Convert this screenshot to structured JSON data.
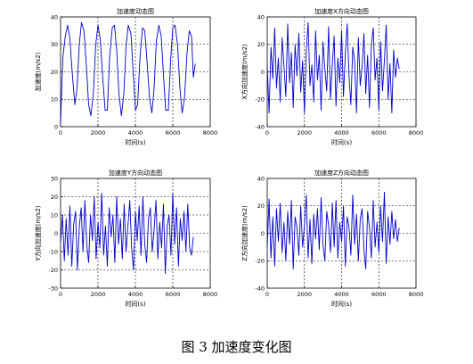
{
  "chart_data": [
    {
      "type": "line",
      "title": "加速度动态图",
      "xlabel": "时间(s)",
      "ylabel": "加速度(m/s2)",
      "xlim": [
        0,
        8000
      ],
      "ylim": [
        0,
        40
      ],
      "xticks": [
        0,
        2000,
        4000,
        6000,
        8000
      ],
      "yticks": [
        0,
        10,
        20,
        30,
        40
      ],
      "grid": true,
      "line_color": "#0000cc",
      "series": [
        {
          "x": [
            0,
            120,
            250,
            380,
            500,
            620,
            760,
            880,
            1000,
            1120,
            1250,
            1380,
            1500,
            1620,
            1760,
            1880,
            2000,
            2120,
            2250,
            2380,
            2500,
            2620,
            2760,
            2880,
            3000,
            3120,
            3250,
            3380,
            3500,
            3620,
            3760,
            3880,
            4000,
            4120,
            4250,
            4380,
            4500,
            4620,
            4760,
            4880,
            5000,
            5120,
            5250,
            5380,
            5500,
            5620,
            5760,
            5880,
            6000,
            6120,
            6250,
            6380,
            6500,
            6620,
            6760,
            6880,
            7000,
            7100,
            7200
          ],
          "y": [
            1,
            25,
            33,
            37,
            32,
            20,
            8,
            14,
            30,
            38,
            35,
            22,
            8,
            4,
            13,
            30,
            37,
            32,
            18,
            6,
            6,
            25,
            36,
            37,
            28,
            12,
            4,
            12,
            29,
            37,
            34,
            20,
            6,
            8,
            26,
            36,
            35,
            24,
            10,
            5,
            14,
            31,
            37,
            33,
            19,
            6,
            6,
            24,
            36,
            37,
            30,
            14,
            5,
            10,
            27,
            35,
            33,
            18,
            23
          ]
        }
      ]
    },
    {
      "type": "line",
      "title": "加速度X方向动态图",
      "xlabel": "时间(s)",
      "ylabel": "X方向加速度(m/s2)",
      "xlim": [
        0,
        8000
      ],
      "ylim": [
        -40,
        40
      ],
      "xticks": [
        0,
        2000,
        4000,
        6000,
        8000
      ],
      "yticks": [
        -40,
        -20,
        0,
        20,
        40
      ],
      "grid": true,
      "line_color": "#0000cc",
      "series": [
        {
          "x": [
            0,
            100,
            200,
            300,
            400,
            500,
            600,
            700,
            800,
            900,
            1000,
            1100,
            1200,
            1300,
            1400,
            1500,
            1600,
            1700,
            1800,
            1900,
            2000,
            2100,
            2200,
            2300,
            2400,
            2500,
            2600,
            2700,
            2800,
            2900,
            3000,
            3100,
            3200,
            3300,
            3400,
            3500,
            3600,
            3700,
            3800,
            3900,
            4000,
            4100,
            4200,
            4300,
            4400,
            4500,
            4600,
            4700,
            4800,
            4900,
            5000,
            5100,
            5200,
            5300,
            5400,
            5500,
            5600,
            5700,
            5800,
            5900,
            6000,
            6100,
            6200,
            6300,
            6400,
            6500,
            6600,
            6700,
            6800,
            6900,
            7000,
            7100
          ],
          "y": [
            5,
            -30,
            18,
            -5,
            32,
            -12,
            10,
            -22,
            25,
            4,
            -18,
            35,
            -8,
            14,
            -26,
            20,
            -3,
            28,
            -15,
            8,
            -30,
            15,
            36,
            -10,
            5,
            -22,
            30,
            -6,
            12,
            -28,
            22,
            2,
            -14,
            33,
            -20,
            6,
            26,
            -25,
            10,
            -8,
            30,
            -18,
            14,
            35,
            -4,
            -24,
            18,
            8,
            -30,
            25,
            -10,
            4,
            28,
            -16,
            12,
            -26,
            20,
            32,
            -6,
            10,
            -28,
            22,
            -14,
            8,
            34,
            -20,
            6,
            -30,
            16,
            -4,
            10,
            2
          ]
        }
      ]
    },
    {
      "type": "line",
      "title": "加速度Y方向动态图",
      "xlabel": "时间(s)",
      "ylabel": "Y方向加速度(m/s2)",
      "xlim": [
        0,
        8000
      ],
      "ylim": [
        -30,
        30
      ],
      "xticks": [
        0,
        2000,
        4000,
        6000,
        8000
      ],
      "yticks": [
        -30,
        -20,
        -10,
        0,
        10,
        20,
        30
      ],
      "grid": true,
      "line_color": "#0000cc",
      "series": [
        {
          "x": [
            0,
            100,
            200,
            300,
            400,
            500,
            600,
            700,
            800,
            900,
            1000,
            1100,
            1200,
            1300,
            1400,
            1500,
            1600,
            1700,
            1800,
            1900,
            2000,
            2100,
            2200,
            2300,
            2400,
            2500,
            2600,
            2700,
            2800,
            2900,
            3000,
            3100,
            3200,
            3300,
            3400,
            3500,
            3600,
            3700,
            3800,
            3900,
            4000,
            4100,
            4200,
            4300,
            4400,
            4500,
            4600,
            4700,
            4800,
            4900,
            5000,
            5100,
            5200,
            5300,
            5400,
            5500,
            5600,
            5700,
            5800,
            5900,
            6000,
            6100,
            6200,
            6300,
            6400,
            6500,
            6600,
            6700,
            6800,
            6900,
            7000,
            7100
          ],
          "y": [
            -5,
            10,
            -15,
            8,
            -12,
            15,
            -18,
            5,
            12,
            -20,
            3,
            14,
            -10,
            18,
            -6,
            -16,
            10,
            -4,
            20,
            -14,
            6,
            -8,
            22,
            -12,
            4,
            -18,
            14,
            -2,
            10,
            -16,
            20,
            -6,
            8,
            -14,
            16,
            -10,
            4,
            18,
            -8,
            -20,
            12,
            -4,
            15,
            -12,
            20,
            -6,
            -16,
            8,
            14,
            -10,
            2,
            18,
            -14,
            6,
            -8,
            16,
            -22,
            4,
            10,
            -12,
            22,
            -6,
            14,
            -18,
            8,
            -4,
            12,
            -10,
            16,
            -8,
            -12,
            -2
          ]
        }
      ]
    },
    {
      "type": "line",
      "title": "加速度Z方向动态图",
      "xlabel": "时间(s)",
      "ylabel": "Z方向加速度(m/s2)",
      "xlim": [
        0,
        8000
      ],
      "ylim": [
        -40,
        40
      ],
      "xticks": [
        0,
        2000,
        4000,
        6000,
        8000
      ],
      "yticks": [
        -40,
        -20,
        0,
        20,
        40
      ],
      "grid": true,
      "line_color": "#0000cc",
      "series": [
        {
          "x": [
            0,
            100,
            200,
            300,
            400,
            500,
            600,
            700,
            800,
            900,
            1000,
            1100,
            1200,
            1300,
            1400,
            1500,
            1600,
            1700,
            1800,
            1900,
            2000,
            2100,
            2200,
            2300,
            2400,
            2500,
            2600,
            2700,
            2800,
            2900,
            3000,
            3100,
            3200,
            3300,
            3400,
            3500,
            3600,
            3700,
            3800,
            3900,
            4000,
            4100,
            4200,
            4300,
            4400,
            4500,
            4600,
            4700,
            4800,
            4900,
            5000,
            5100,
            5200,
            5300,
            5400,
            5500,
            5600,
            5700,
            5800,
            5900,
            6000,
            6100,
            6200,
            6300,
            6400,
            6500,
            6600,
            6700,
            6800,
            6900,
            7000,
            7100
          ],
          "y": [
            -10,
            25,
            -18,
            12,
            -24,
            18,
            -6,
            22,
            -14,
            8,
            -20,
            16,
            -8,
            24,
            -26,
            12,
            4,
            -16,
            20,
            -10,
            6,
            28,
            -18,
            10,
            -22,
            14,
            -4,
            18,
            -12,
            26,
            -8,
            -20,
            16,
            6,
            -14,
            22,
            -10,
            24,
            -18,
            8,
            -6,
            20,
            -24,
            12,
            4,
            -16,
            28,
            -8,
            14,
            -20,
            10,
            18,
            -12,
            -26,
            16,
            4,
            -18,
            24,
            -10,
            8,
            -14,
            20,
            -6,
            30,
            -22,
            12,
            -8,
            16,
            -4,
            10,
            -6,
            4
          ]
        }
      ]
    }
  ],
  "caption": "图 3 加速度变化图"
}
